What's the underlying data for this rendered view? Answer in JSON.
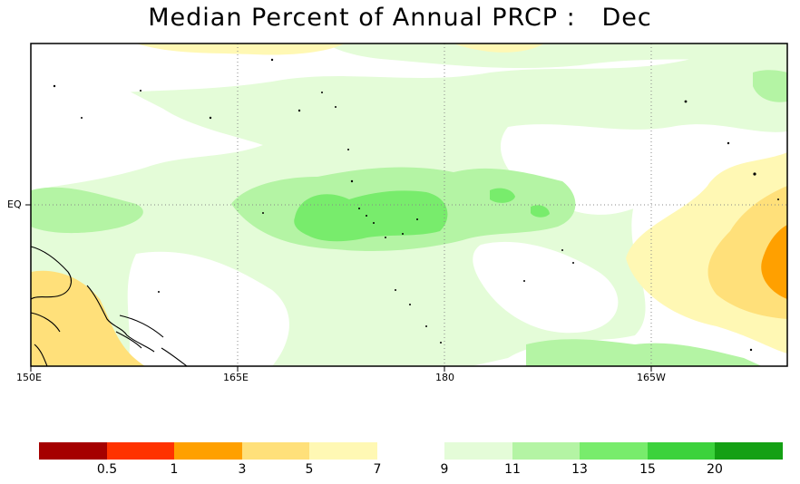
{
  "title": "Median Percent of Annual PRCP :   Dec",
  "map": {
    "lon_labels": [
      "150E",
      "165E",
      "180",
      "165W"
    ],
    "lat_labels": [
      "EQ"
    ]
  },
  "legend": {
    "colors_low": [
      "#a50000",
      "#ff3200",
      "#ffa000",
      "#ffe07a",
      "#fff8b4"
    ],
    "colors_high": [
      "#e4fcd8",
      "#b4f4a4",
      "#78ec6c",
      "#3cd23c",
      "#14a014"
    ],
    "tick_labels": [
      "0.5",
      "1",
      "3",
      "5",
      "7",
      "9",
      "11",
      "13",
      "15",
      "20"
    ]
  },
  "colors": {
    "green_light": "#e4fcd8",
    "green_mid": "#b4f4a4",
    "green_dark": "#78ec6c",
    "yellow_light": "#fff8b4",
    "yellow_mid": "#ffe07a",
    "orange": "#ffa000"
  }
}
